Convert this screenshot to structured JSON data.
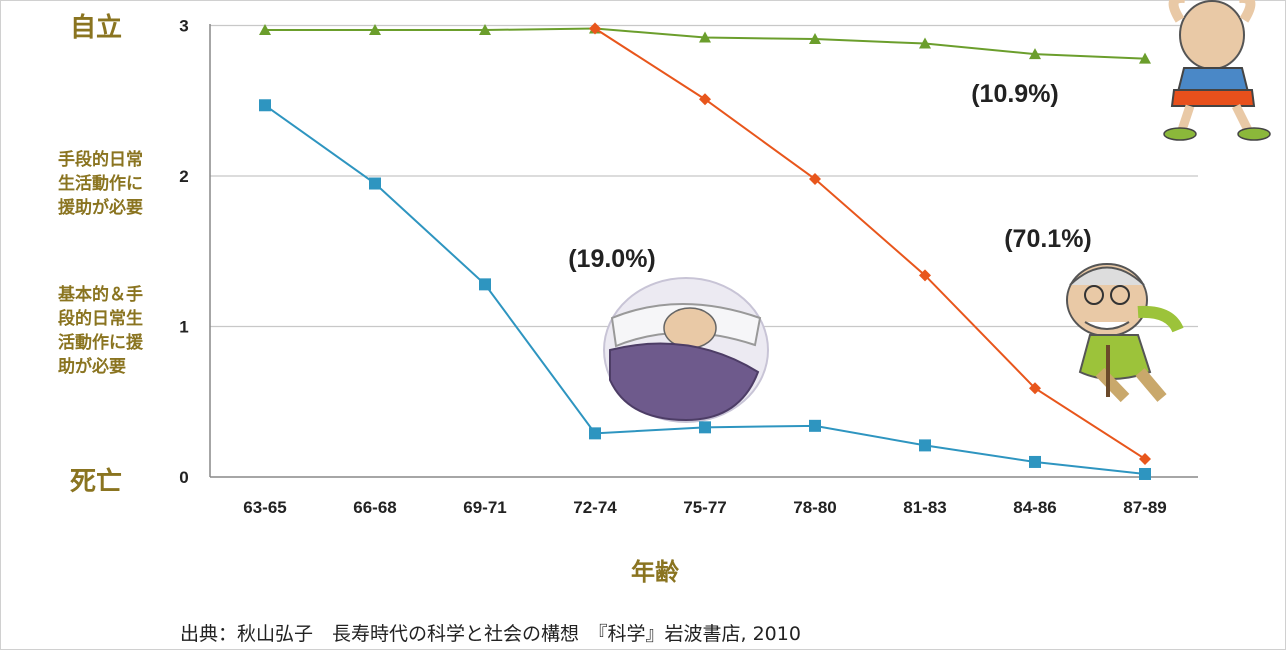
{
  "chart_data": {
    "type": "line",
    "categories": [
      "63-65",
      "66-68",
      "69-71",
      "72-74",
      "75-77",
      "78-80",
      "81-83",
      "84-86",
      "87-89"
    ],
    "ylim": [
      0,
      3
    ],
    "y_ticks": [
      "0",
      "1",
      "2",
      "3"
    ],
    "y_level_labels": {
      "level3": "自立",
      "level2": "手段的日常\n生活動作に\n援助が必要",
      "level1": "基本的＆手\n段的日常生\n活動作に援\n助が必要",
      "level0": "死亡"
    },
    "xlabel": "年齢",
    "grid": "horizontal",
    "series": [
      {
        "color": "#6b9e2c",
        "marker": "triangle",
        "values": [
          2.97,
          2.97,
          2.97,
          2.98,
          2.92,
          2.91,
          2.88,
          2.81,
          2.78
        ]
      },
      {
        "color": "#e8561c",
        "marker": "diamond",
        "values": [
          null,
          null,
          null,
          2.98,
          2.51,
          1.98,
          1.34,
          0.59,
          0.12
        ]
      },
      {
        "color": "#2e95c0",
        "marker": "square",
        "values": [
          2.47,
          1.95,
          1.28,
          0.29,
          0.33,
          0.34,
          0.21,
          0.1,
          0.02
        ]
      }
    ],
    "annotations": [
      "(10.9%)",
      "(70.1%)",
      "(19.0%)"
    ],
    "source": "出典：秋山弘子　長寿時代の科学と社会の構想　『科学』岩波書店, 2010"
  },
  "illustrations": {
    "active_elder": "old-man-flexing-illustration",
    "cane_elder": "old-man-with-cane-illustration",
    "bedridden": "person-in-bed-illustration"
  }
}
